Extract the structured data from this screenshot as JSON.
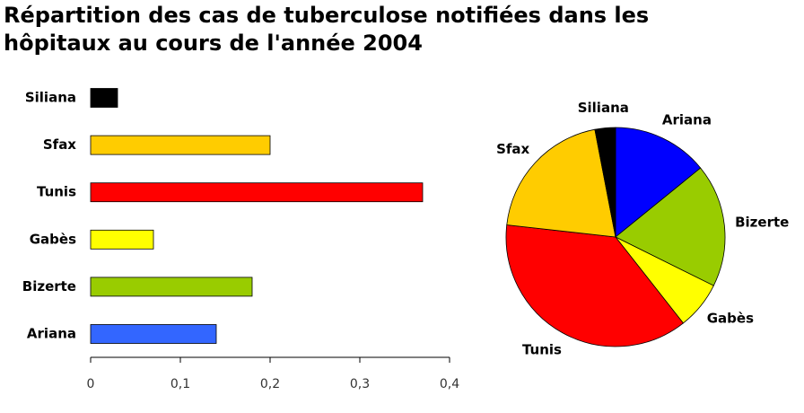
{
  "title": "Répartition des cas de tuberculose notifiées dans les hôpitaux au cours de l'année 2004",
  "chart_data": [
    {
      "type": "bar",
      "categories": [
        "Siliana",
        "Sfax",
        "Tunis",
        "Gabès",
        "Bizerte",
        "Ariana"
      ],
      "values": [
        0.03,
        0.2,
        0.37,
        0.07,
        0.18,
        0.14
      ],
      "colors": [
        "#000000",
        "#ffcc00",
        "#ff0000",
        "#ffff00",
        "#99cc00",
        "#3366ff"
      ],
      "xlim": [
        0,
        0.4
      ],
      "xticks": [
        0,
        {
          "value": 0.1,
          "label": "0,1"
        },
        {
          "value": 0.2,
          "label": "0,2"
        },
        {
          "value": 0.3,
          "label": "0,3"
        },
        {
          "value": 0.4,
          "label": "0,4"
        }
      ]
    },
    {
      "type": "pie",
      "categories": [
        "Ariana",
        "Bizerte",
        "Gabès",
        "Tunis",
        "Sfax",
        "Siliana"
      ],
      "values": [
        0.14,
        0.18,
        0.07,
        0.37,
        0.2,
        0.03
      ],
      "colors": [
        "#0000ff",
        "#99cc00",
        "#ffff00",
        "#ff0000",
        "#ffcc00",
        "#000000"
      ]
    }
  ]
}
